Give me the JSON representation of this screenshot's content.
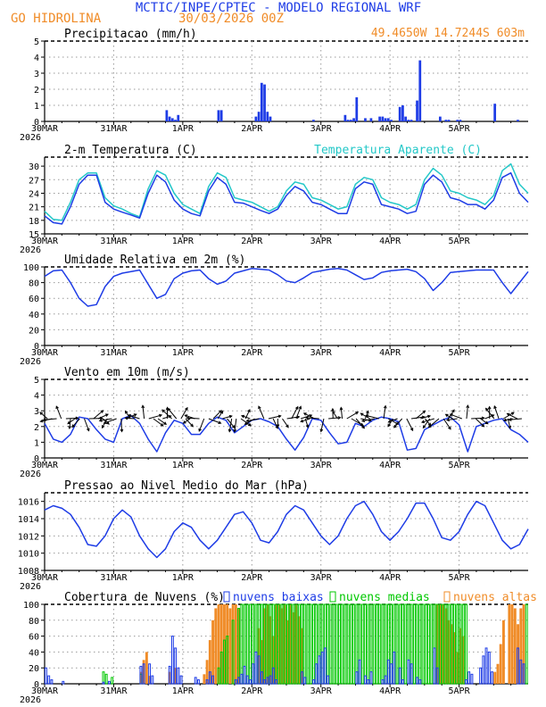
{
  "header": {
    "title": "MCTIC/INPE/CPTEC - MODELO REGIONAL WRF",
    "location": "GO HIDROLINA",
    "run": "30/03/2026 00Z",
    "coords": "49.4650W 14.7244S 603m"
  },
  "colors": {
    "blue": "#1e3ce6",
    "cyan": "#24c8c8",
    "orange": "#f08c28",
    "green": "#00c800",
    "black": "#000000",
    "grid": "#9a9a9a"
  },
  "x_axis": {
    "labels": [
      "30MAR",
      "31MAR",
      "1APR",
      "2APR",
      "3APR",
      "4APR",
      "5APR"
    ],
    "year": "2026",
    "range_hours": [
      0,
      168
    ]
  },
  "chart_data": [
    {
      "id": "precip",
      "type": "bar",
      "title": "Precipitacao (mm/h)",
      "ylim": [
        0,
        5
      ],
      "yticks": [
        "0",
        "1",
        "2",
        "3",
        "4",
        "5"
      ],
      "x_hours": [
        42,
        43,
        44,
        45,
        46,
        60,
        61,
        73,
        74,
        75,
        76,
        77,
        78,
        93,
        104,
        105,
        106,
        107,
        108,
        111,
        113,
        116,
        117,
        118,
        119,
        120,
        123,
        124,
        125,
        126,
        127,
        129,
        130,
        137,
        139,
        140,
        143,
        144,
        156,
        164
      ],
      "values": [
        0.7,
        0.3,
        0.2,
        0.1,
        0.4,
        0.7,
        0.7,
        0.3,
        0.6,
        2.4,
        2.3,
        0.6,
        0.3,
        0.1,
        0.4,
        0.1,
        0.1,
        0.2,
        1.5,
        0.2,
        0.2,
        0.3,
        0.3,
        0.2,
        0.2,
        0.1,
        0.9,
        1.0,
        0.3,
        0.1,
        0.1,
        1.3,
        3.8,
        0.3,
        0.1,
        0.1,
        0.1,
        0.1,
        1.1,
        0.1
      ]
    },
    {
      "id": "temp",
      "type": "line",
      "title": "2-m Temperatura (C)",
      "legend": "Temperatura Aparente (C)",
      "ylim": [
        15,
        32
      ],
      "yticks": [
        "15",
        "18",
        "21",
        "24",
        "27",
        "30"
      ],
      "ytick_values": [
        15,
        18,
        21,
        24,
        27,
        30
      ],
      "x_hours": [
        0,
        3,
        6,
        9,
        12,
        15,
        18,
        21,
        24,
        27,
        30,
        33,
        36,
        39,
        42,
        45,
        48,
        51,
        54,
        57,
        60,
        63,
        66,
        69,
        72,
        75,
        78,
        81,
        84,
        87,
        90,
        93,
        96,
        99,
        102,
        105,
        108,
        111,
        114,
        117,
        120,
        123,
        126,
        129,
        132,
        135,
        138,
        141,
        144,
        147,
        150,
        153,
        156,
        159,
        162,
        165,
        168
      ],
      "series": [
        {
          "name": "2-m Temperatura (C)",
          "values": [
            19,
            17.5,
            17.2,
            21,
            26,
            28,
            28,
            22,
            20.5,
            19.8,
            19.2,
            18.5,
            24,
            28,
            26.5,
            22.5,
            20.5,
            19.5,
            19,
            24.5,
            27.5,
            26,
            22,
            21.8,
            21,
            20.2,
            19.5,
            20.5,
            23.5,
            25.5,
            24.5,
            22,
            21.5,
            20.5,
            19.5,
            19.5,
            25,
            26.5,
            26,
            21.5,
            21,
            20.5,
            19.5,
            20,
            26,
            28,
            26.5,
            23,
            22.5,
            21.5,
            21.5,
            20.5,
            22.5,
            27.5,
            28.5,
            24,
            22
          ]
        },
        {
          "name": "Temperatura Aparente (C)",
          "values": [
            20,
            18.2,
            18,
            22,
            27,
            28.5,
            28.5,
            23,
            21.2,
            20.5,
            19.5,
            18.8,
            25,
            29,
            28,
            24,
            21.5,
            20.5,
            19.5,
            25.5,
            28.5,
            27.5,
            23,
            22.5,
            22,
            21,
            20,
            21,
            24.5,
            26.5,
            26,
            23,
            22.5,
            21.5,
            20.5,
            21,
            26,
            27.5,
            27,
            23,
            22,
            21.5,
            20.5,
            21.5,
            27,
            29.5,
            28,
            24.5,
            24,
            23,
            22.5,
            21.5,
            23.5,
            29,
            30.5,
            26,
            24
          ]
        }
      ]
    },
    {
      "id": "humidity",
      "type": "line",
      "title": "Umidade Relativa em 2m (%)",
      "ylim": [
        0,
        100
      ],
      "yticks": [
        "0",
        "20",
        "40",
        "60",
        "80",
        "100"
      ],
      "x_hours": [
        0,
        3,
        6,
        9,
        12,
        15,
        18,
        21,
        24,
        27,
        30,
        33,
        36,
        39,
        42,
        45,
        48,
        51,
        54,
        57,
        60,
        63,
        66,
        69,
        72,
        75,
        78,
        81,
        84,
        87,
        90,
        93,
        96,
        99,
        102,
        105,
        108,
        111,
        114,
        117,
        120,
        123,
        126,
        129,
        132,
        135,
        138,
        141,
        144,
        147,
        150,
        153,
        156,
        159,
        162,
        165,
        168
      ],
      "values": [
        88,
        95,
        96,
        80,
        60,
        50,
        52,
        75,
        88,
        92,
        94,
        96,
        78,
        60,
        65,
        85,
        92,
        95,
        96,
        85,
        78,
        82,
        92,
        95,
        98,
        97,
        96,
        90,
        82,
        80,
        86,
        93,
        95,
        97,
        98,
        96,
        90,
        84,
        86,
        93,
        95,
        96,
        97,
        94,
        85,
        70,
        80,
        93,
        94,
        95,
        96,
        96,
        96,
        80,
        66,
        80,
        94
      ]
    },
    {
      "id": "wind",
      "type": "line",
      "title": "Vento em 10m (m/s)",
      "ylim": [
        0,
        5
      ],
      "yticks": [
        "0",
        "1",
        "2",
        "3",
        "4",
        "5"
      ],
      "arrows": "wind direction vectors along y=2.5",
      "x_hours": [
        0,
        3,
        6,
        9,
        12,
        15,
        18,
        21,
        24,
        27,
        30,
        33,
        36,
        39,
        42,
        45,
        48,
        51,
        54,
        57,
        60,
        63,
        66,
        69,
        72,
        75,
        78,
        81,
        84,
        87,
        90,
        93,
        96,
        99,
        102,
        105,
        108,
        111,
        114,
        117,
        120,
        123,
        126,
        129,
        132,
        135,
        138,
        141,
        144,
        147,
        150,
        153,
        156,
        159,
        162,
        165,
        168
      ],
      "values": [
        2.2,
        1.2,
        1.0,
        1.5,
        2.6,
        2.5,
        1.8,
        1.2,
        1.0,
        2.5,
        2.7,
        2.2,
        1.2,
        0.4,
        1.6,
        2.4,
        2.2,
        1.5,
        1.5,
        2.2,
        2.6,
        2.4,
        1.6,
        2.0,
        2.4,
        2.5,
        2.3,
        2.0,
        1.2,
        0.5,
        1.3,
        2.5,
        2.4,
        1.6,
        0.9,
        1.0,
        2.2,
        2.0,
        2.4,
        2.6,
        2.5,
        2.3,
        0.5,
        0.6,
        1.8,
        2.1,
        2.4,
        2.6,
        2.1,
        0.4,
        2.0,
        2.2,
        2.4,
        2.5,
        1.8,
        1.5,
        1.0
      ]
    },
    {
      "id": "pressure",
      "type": "line",
      "title": "Pressao ao Nivel Medio do Mar (hPa)",
      "ylim": [
        1008,
        1017
      ],
      "yticks": [
        "1008",
        "1010",
        "1012",
        "1014",
        "1016"
      ],
      "ytick_values": [
        1008,
        1010,
        1012,
        1014,
        1016
      ],
      "x_hours": [
        0,
        3,
        6,
        9,
        12,
        15,
        18,
        21,
        24,
        27,
        30,
        33,
        36,
        39,
        42,
        45,
        48,
        51,
        54,
        57,
        60,
        63,
        66,
        69,
        72,
        75,
        78,
        81,
        84,
        87,
        90,
        93,
        96,
        99,
        102,
        105,
        108,
        111,
        114,
        117,
        120,
        123,
        126,
        129,
        132,
        135,
        138,
        141,
        144,
        147,
        150,
        153,
        156,
        159,
        162,
        165,
        168
      ],
      "values": [
        1015,
        1015.5,
        1015.2,
        1014.5,
        1013,
        1011,
        1010.8,
        1012,
        1014,
        1015,
        1014.2,
        1012,
        1010.5,
        1009.5,
        1010.5,
        1012.5,
        1013.5,
        1013,
        1011.5,
        1010.5,
        1011.5,
        1013,
        1014.5,
        1014.8,
        1013.5,
        1011.5,
        1011.2,
        1012.5,
        1014.5,
        1015.5,
        1015,
        1013.5,
        1012,
        1011,
        1012,
        1014,
        1015.5,
        1016,
        1014.5,
        1012.5,
        1011.5,
        1012.5,
        1014,
        1015.8,
        1015.8,
        1014,
        1011.8,
        1011.5,
        1012.5,
        1014.5,
        1016,
        1015.5,
        1013.5,
        1011.5,
        1010.5,
        1011,
        1012.8
      ]
    },
    {
      "id": "clouds",
      "type": "bar",
      "title": "Cobertura de Nuvens (%)",
      "ylim": [
        0,
        100
      ],
      "yticks": [
        "0",
        "20",
        "40",
        "60",
        "80",
        "100"
      ],
      "series": [
        {
          "name": "nuvens baixas",
          "style": "outline",
          "x_hours": [
            0,
            1,
            2,
            6,
            20,
            22,
            33,
            34,
            36,
            37,
            43,
            44,
            45,
            46,
            47,
            52,
            53,
            56,
            57,
            58,
            66,
            67,
            68,
            69,
            70,
            71,
            72,
            73,
            74,
            75,
            76,
            77,
            78,
            79,
            80,
            89,
            90,
            93,
            94,
            95,
            96,
            97,
            98,
            108,
            109,
            111,
            112,
            113,
            117,
            118,
            119,
            120,
            121,
            123,
            124,
            126,
            127,
            129,
            130,
            135,
            136,
            146,
            147,
            148,
            151,
            152,
            153,
            154,
            155,
            164,
            165,
            166
          ],
          "values": [
            20,
            10,
            5,
            3,
            2,
            3,
            22,
            25,
            25,
            10,
            22,
            60,
            45,
            20,
            10,
            8,
            5,
            5,
            15,
            10,
            5,
            8,
            12,
            22,
            10,
            5,
            25,
            40,
            35,
            15,
            5,
            8,
            10,
            20,
            5,
            15,
            8,
            5,
            25,
            35,
            40,
            45,
            10,
            15,
            30,
            10,
            5,
            15,
            5,
            10,
            30,
            25,
            40,
            20,
            5,
            30,
            25,
            8,
            5,
            45,
            20,
            5,
            15,
            12,
            20,
            35,
            45,
            40,
            15,
            45,
            30,
            25
          ]
        },
        {
          "name": "nuvens medias",
          "style": "outline",
          "x_hours": [
            20,
            21,
            23,
            33,
            60,
            61,
            62,
            63,
            65,
            67,
            68,
            69,
            70,
            71,
            72,
            73,
            74,
            75,
            76,
            77,
            78,
            79,
            80,
            81,
            82,
            83,
            84,
            85,
            86,
            87,
            88,
            89,
            90,
            91,
            92,
            93,
            94,
            95,
            96,
            97,
            98,
            99,
            100,
            101,
            102,
            103,
            104,
            105,
            106,
            107,
            108,
            109,
            110,
            111,
            112,
            113,
            114,
            115,
            116,
            117,
            118,
            119,
            120,
            121,
            122,
            123,
            124,
            125,
            126,
            127,
            128,
            129,
            130,
            131,
            132,
            133,
            134,
            135,
            136,
            137,
            138,
            139,
            140,
            141,
            142,
            143,
            144,
            145,
            146,
            167
          ],
          "values": [
            15,
            12,
            8,
            12,
            20,
            40,
            55,
            60,
            80,
            95,
            100,
            100,
            100,
            100,
            100,
            100,
            100,
            100,
            100,
            100,
            100,
            100,
            100,
            100,
            100,
            100,
            100,
            100,
            100,
            100,
            100,
            100,
            100,
            100,
            100,
            100,
            100,
            100,
            100,
            100,
            100,
            100,
            100,
            100,
            100,
            100,
            100,
            100,
            100,
            100,
            100,
            100,
            100,
            100,
            100,
            100,
            100,
            100,
            100,
            100,
            100,
            100,
            100,
            100,
            100,
            100,
            100,
            100,
            100,
            100,
            100,
            100,
            100,
            100,
            100,
            100,
            100,
            100,
            100,
            100,
            100,
            100,
            100,
            100,
            100,
            100,
            100,
            100,
            100,
            100
          ]
        },
        {
          "name": "nuvens altas",
          "style": "filled",
          "x_hours": [
            33,
            34,
            35,
            36,
            43,
            45,
            55,
            56,
            57,
            58,
            59,
            60,
            61,
            62,
            63,
            64,
            65,
            66,
            67,
            74,
            75,
            76,
            77,
            78,
            79,
            80,
            81,
            82,
            83,
            84,
            85,
            86,
            87,
            88,
            89,
            136,
            137,
            138,
            139,
            140,
            141,
            142,
            143,
            144,
            145,
            156,
            157,
            158,
            159,
            161,
            162,
            163,
            164,
            165,
            166
          ],
          "values": [
            15,
            30,
            40,
            10,
            15,
            20,
            12,
            30,
            55,
            80,
            95,
            100,
            100,
            100,
            100,
            95,
            100,
            100,
            95,
            70,
            55,
            95,
            100,
            85,
            60,
            100,
            100,
            95,
            100,
            80,
            100,
            90,
            100,
            85,
            70,
            100,
            100,
            100,
            95,
            80,
            75,
            65,
            40,
            70,
            60,
            15,
            25,
            50,
            80,
            100,
            100,
            95,
            75,
            95,
            100
          ]
        }
      ]
    }
  ]
}
